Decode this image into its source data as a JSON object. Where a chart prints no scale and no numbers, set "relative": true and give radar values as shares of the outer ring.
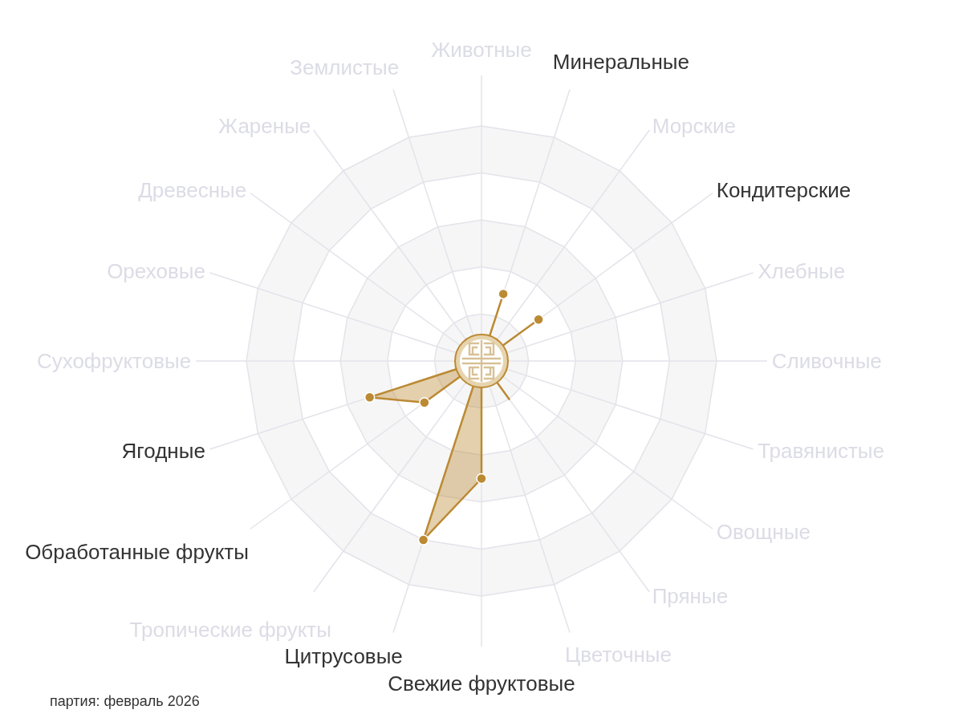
{
  "chart_data": {
    "type": "radar",
    "relative": true,
    "categories": [
      "Животные",
      "Минеральные",
      "Морские",
      "Кондитерские",
      "Хлебные",
      "Сливочные",
      "Травянистые",
      "Овощные",
      "Пряные",
      "Цветочные",
      "Свежие фруктовые",
      "Цитрусовые",
      "Тропические фрукты",
      "Обработанные фрукты",
      "Ягодные",
      "Сухофруктовые",
      "Ореховые",
      "Древесные",
      "Жареные",
      "Землистые"
    ],
    "series": [
      {
        "color": "#bb8a33",
        "values": [
          0,
          0.3,
          0,
          0.3,
          0,
          0,
          0,
          0,
          0.2,
          0,
          0.5,
          0.8,
          0,
          0.3,
          0.5,
          0,
          0,
          0,
          0,
          0
        ]
      }
    ],
    "grid": true,
    "marker": "circle",
    "annotations": [
      "партия: февраль 2026"
    ]
  }
}
